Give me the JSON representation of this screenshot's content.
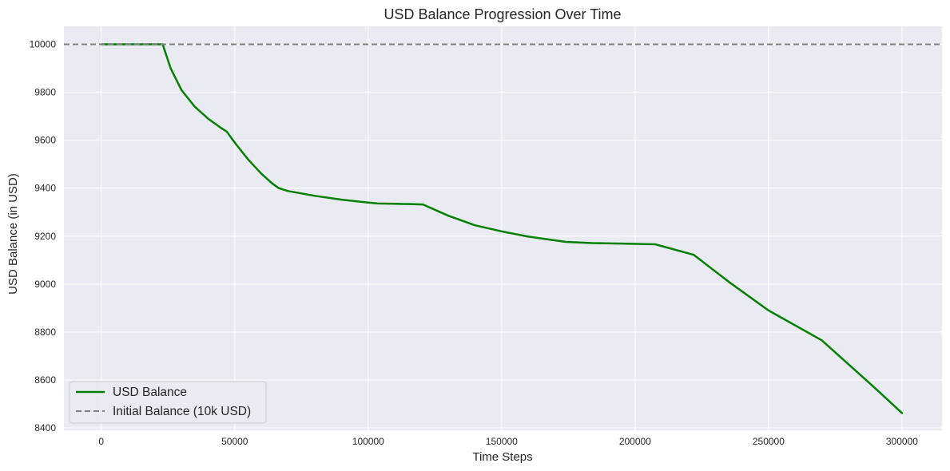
{
  "chart_data": {
    "type": "line",
    "title": "USD Balance Progression Over Time",
    "xlabel": "Time Steps",
    "ylabel": "USD Balance (in USD)",
    "xlim": [
      -14000,
      315000
    ],
    "ylim": [
      8390,
      10075
    ],
    "x_ticks": [
      0,
      50000,
      100000,
      150000,
      200000,
      250000,
      300000
    ],
    "y_ticks": [
      8400,
      8600,
      8800,
      9000,
      9200,
      9400,
      9600,
      9800,
      10000
    ],
    "grid": true,
    "legend_position": "lower-left",
    "series": [
      {
        "name": "USD Balance",
        "color": "#008000",
        "style": "solid",
        "x": [
          0,
          23000,
          26000,
          30000,
          35000,
          40000,
          45000,
          47000,
          50000,
          55000,
          60000,
          64000,
          66500,
          70000,
          80000,
          90000,
          100000,
          103500,
          110000,
          120500,
          130000,
          140000,
          150000,
          160000,
          174000,
          184000,
          195000,
          207500,
          222000,
          235000,
          250000,
          270000,
          290000,
          300000
        ],
        "y": [
          10000,
          10000,
          9900,
          9810,
          9740,
          9690,
          9650,
          9636,
          9590,
          9520,
          9460,
          9420,
          9400,
          9388,
          9368,
          9352,
          9340,
          9336,
          9335,
          9332,
          9285,
          9245,
          9220,
          9198,
          9176,
          9171,
          9169,
          9166,
          9122,
          9010,
          8890,
          8765,
          8565,
          8462
        ]
      },
      {
        "name": "Initial Balance (10k USD)",
        "color": "#808080",
        "style": "dashed",
        "y_constant": 10000
      }
    ]
  }
}
